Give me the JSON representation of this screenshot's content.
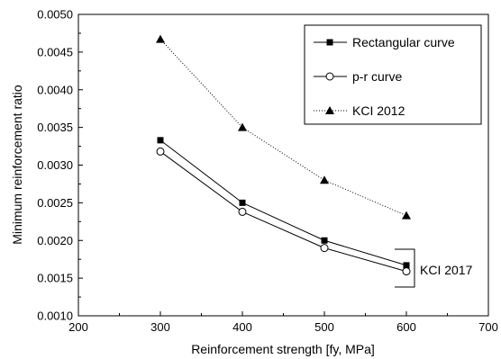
{
  "chart_data": {
    "type": "line",
    "title": "",
    "xlabel": "Reinforcement strength [fy, MPa]",
    "ylabel": "Minimum reinforcement ratio",
    "xlim": [
      200,
      700
    ],
    "ylim": [
      0.001,
      0.005
    ],
    "x_ticks": [
      "200",
      "300",
      "400",
      "500",
      "600",
      "700"
    ],
    "y_ticks": [
      "0.0010",
      "0.0015",
      "0.0020",
      "0.0025",
      "0.0030",
      "0.0035",
      "0.0040",
      "0.0045",
      "0.0050"
    ],
    "x": [
      300,
      400,
      500,
      600
    ],
    "series": [
      {
        "name": "Rectangular curve",
        "values": [
          0.00333,
          0.0025,
          0.002,
          0.00167
        ],
        "marker": "filled-square",
        "line": "solid",
        "color": "#000000"
      },
      {
        "name": "p-r curve",
        "values": [
          0.00318,
          0.00238,
          0.0019,
          0.00159
        ],
        "marker": "open-circle",
        "line": "solid",
        "color": "#000000"
      },
      {
        "name": "KCI 2012",
        "values": [
          0.00467,
          0.0035,
          0.0028,
          0.00233
        ],
        "marker": "filled-triangle",
        "line": "dotted",
        "color": "#000000"
      }
    ],
    "legend_position": "top-right",
    "annotation": "KCI 2017",
    "grid": false
  }
}
